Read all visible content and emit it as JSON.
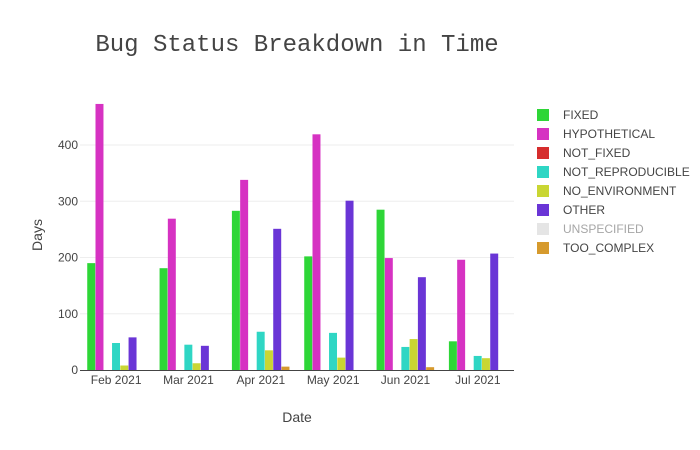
{
  "chart_data": {
    "type": "bar",
    "title": "Bug Status Breakdown in Time",
    "xlabel": "Date",
    "ylabel": "Days",
    "ylim": [
      0,
      480
    ],
    "yticks": [
      0,
      100,
      200,
      300,
      400
    ],
    "grid": true,
    "legend_position": "right",
    "categories": [
      "Feb 2021",
      "Mar 2021",
      "Apr 2021",
      "May 2021",
      "Jun 2021",
      "Jul 2021"
    ],
    "series": [
      {
        "name": "FIXED",
        "color": "#2ed637",
        "values": [
          190,
          181,
          283,
          202,
          285,
          51
        ]
      },
      {
        "name": "HYPOTHETICAL",
        "color": "#d632c2",
        "values": [
          473,
          269,
          338,
          419,
          199,
          196
        ]
      },
      {
        "name": "NOT_FIXED",
        "color": "#d62d2d",
        "values": [
          0,
          0,
          0,
          0,
          0,
          0
        ]
      },
      {
        "name": "NOT_REPRODUCIBLE",
        "color": "#2fd6c4",
        "values": [
          48,
          45,
          68,
          66,
          41,
          25
        ]
      },
      {
        "name": "NO_ENVIRONMENT",
        "color": "#c9d633",
        "values": [
          8,
          12,
          35,
          22,
          55,
          21
        ]
      },
      {
        "name": "OTHER",
        "color": "#6a35d6",
        "values": [
          58,
          43,
          251,
          301,
          165,
          207
        ]
      },
      {
        "name": "UNSPECIFIED",
        "color": "#e5e5e5",
        "values": [
          0,
          0,
          0,
          0,
          0,
          0
        ],
        "hidden": true
      },
      {
        "name": "TOO_COMPLEX",
        "color": "#d69a2d",
        "values": [
          0,
          0,
          6,
          0,
          5,
          0
        ]
      }
    ]
  }
}
